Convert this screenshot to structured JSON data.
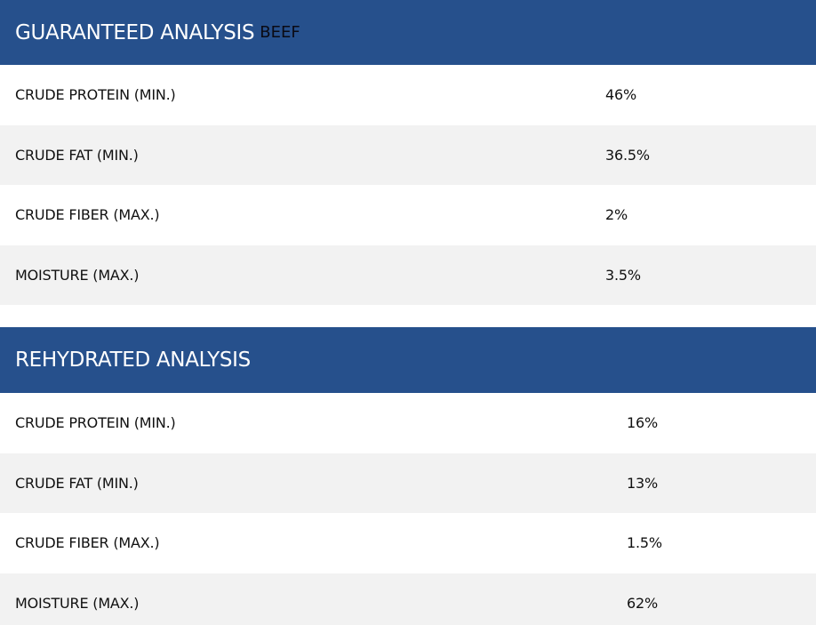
{
  "guaranteed": {
    "title": "GUARANTEED ANALYSIS",
    "tag": "BEEF",
    "rows": [
      {
        "name": "CRUDE PROTEIN (MIN.)",
        "value": "46%"
      },
      {
        "name": "CRUDE FAT (MIN.)",
        "value": "36.5%"
      },
      {
        "name": "CRUDE FIBER (MAX.)",
        "value": "2%"
      },
      {
        "name": "MOISTURE (MAX.)",
        "value": "3.5%"
      }
    ]
  },
  "rehydrated": {
    "title": "REHYDRATED ANALYSIS",
    "rows": [
      {
        "name": "CRUDE PROTEIN (MIN.)",
        "value": "16%"
      },
      {
        "name": "CRUDE FAT (MIN.)",
        "value": "13%"
      },
      {
        "name": "CRUDE FIBER (MAX.)",
        "value": "1.5%"
      },
      {
        "name": "MOISTURE (MAX.)",
        "value": "62%"
      }
    ]
  },
  "colors": {
    "header_bg": "#26508c",
    "header_text": "#ffffff",
    "row_alt_bg": "#f2f2f2"
  }
}
